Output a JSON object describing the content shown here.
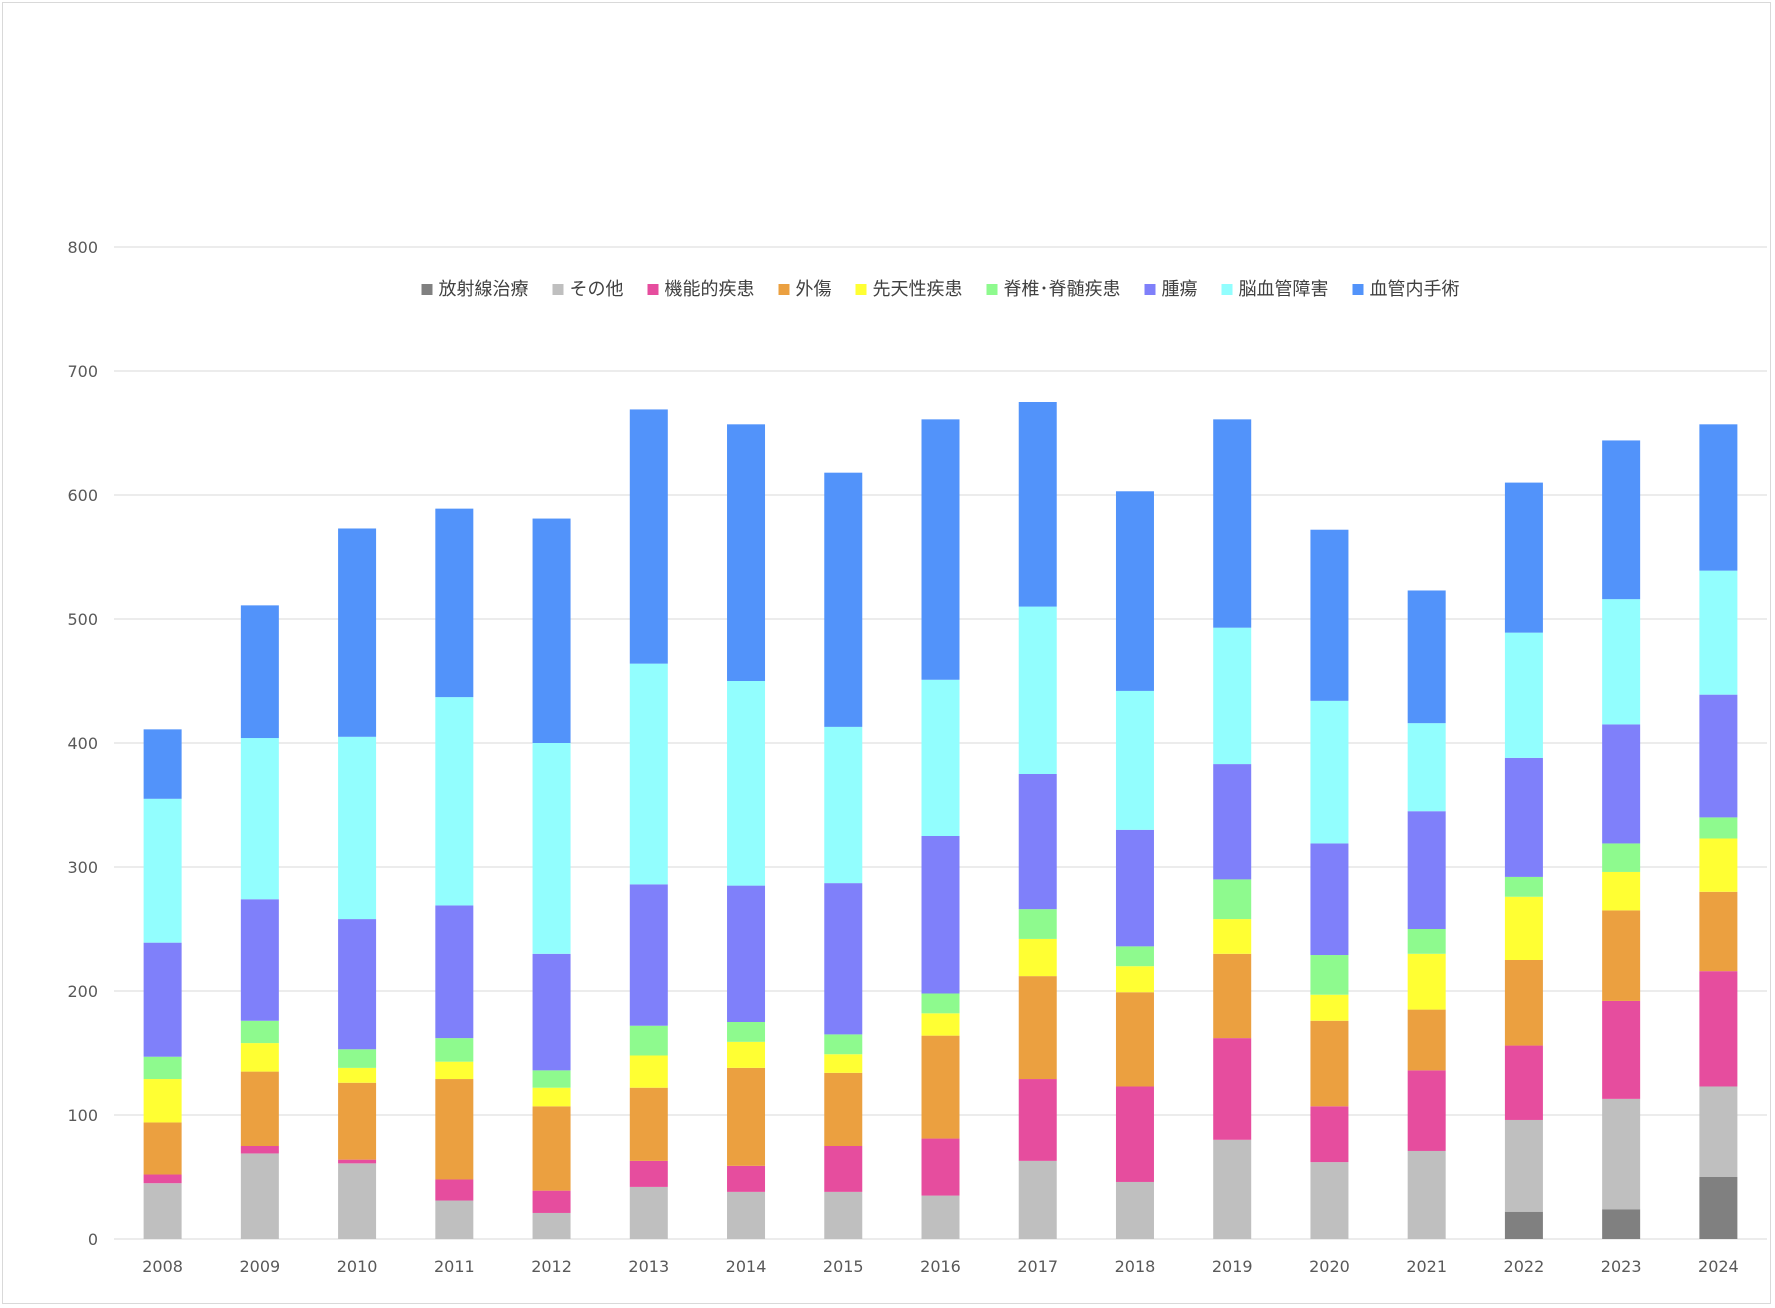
{
  "chart_data": {
    "type": "bar",
    "stacked": true,
    "title": "",
    "xlabel": "",
    "ylabel": "",
    "ylim": [
      0,
      800
    ],
    "yticks": [
      0,
      100,
      200,
      300,
      400,
      500,
      600,
      700,
      800
    ],
    "grid": true,
    "legend_position": "top",
    "categories": [
      "2008",
      "2009",
      "2010",
      "2011",
      "2012",
      "2013",
      "2014",
      "2015",
      "2016",
      "2017",
      "2018",
      "2019",
      "2020",
      "2021",
      "2022",
      "2023",
      "2024"
    ],
    "series": [
      {
        "name": "放射線治療",
        "color": "#808080",
        "values": [
          0,
          0,
          0,
          0,
          0,
          0,
          0,
          0,
          0,
          0,
          0,
          0,
          0,
          0,
          22,
          24,
          50
        ]
      },
      {
        "name": "その他",
        "color": "#bfbfbf",
        "values": [
          45,
          69,
          61,
          31,
          21,
          42,
          38,
          38,
          35,
          63,
          46,
          80,
          62,
          71,
          74,
          89,
          73
        ]
      },
      {
        "name": "機能的疾患",
        "color": "#e64d9e",
        "values": [
          7,
          6,
          3,
          17,
          18,
          21,
          21,
          37,
          46,
          66,
          77,
          82,
          45,
          65,
          60,
          79,
          93
        ]
      },
      {
        "name": "外傷",
        "color": "#eba040",
        "values": [
          42,
          60,
          62,
          81,
          68,
          59,
          79,
          59,
          83,
          83,
          76,
          68,
          69,
          49,
          69,
          73,
          64
        ]
      },
      {
        "name": "先天性疾患",
        "color": "#ffff33",
        "values": [
          35,
          23,
          12,
          14,
          15,
          26,
          21,
          15,
          18,
          30,
          21,
          28,
          21,
          45,
          51,
          31,
          43
        ]
      },
      {
        "name": "脊椎･脊髄疾患",
        "color": "#8efa8e",
        "values": [
          18,
          18,
          15,
          19,
          14,
          24,
          16,
          16,
          16,
          24,
          16,
          32,
          32,
          20,
          16,
          23,
          17
        ]
      },
      {
        "name": "腫瘍",
        "color": "#7f80fa",
        "values": [
          92,
          98,
          105,
          107,
          94,
          114,
          110,
          122,
          127,
          109,
          94,
          93,
          90,
          95,
          96,
          96,
          99
        ]
      },
      {
        "name": "脳血管障害",
        "color": "#92fefe",
        "values": [
          116,
          130,
          147,
          168,
          170,
          178,
          165,
          126,
          126,
          135,
          112,
          110,
          115,
          71,
          101,
          101,
          100
        ]
      },
      {
        "name": "血管内手術",
        "color": "#5293fa",
        "values": [
          56,
          107,
          168,
          152,
          181,
          205,
          207,
          205,
          210,
          165,
          161,
          168,
          138,
          107,
          121,
          128,
          118
        ]
      }
    ]
  }
}
